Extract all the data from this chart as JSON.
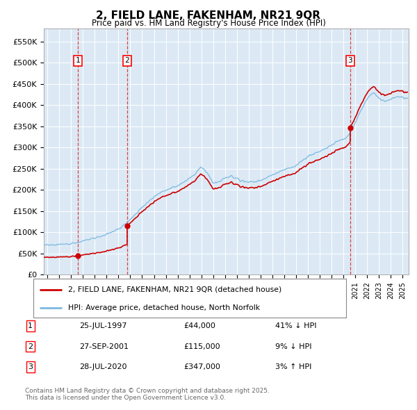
{
  "title": "2, FIELD LANE, FAKENHAM, NR21 9QR",
  "subtitle": "Price paid vs. HM Land Registry's House Price Index (HPI)",
  "plot_bg_color": "#dce9f5",
  "hpi_color": "#7ab8e0",
  "price_color": "#cc0000",
  "ylim": [
    0,
    580000
  ],
  "yticks": [
    0,
    50000,
    100000,
    150000,
    200000,
    250000,
    300000,
    350000,
    400000,
    450000,
    500000,
    550000
  ],
  "ytick_labels": [
    "£0",
    "£50K",
    "£100K",
    "£150K",
    "£200K",
    "£250K",
    "£300K",
    "£350K",
    "£400K",
    "£450K",
    "£500K",
    "£550K"
  ],
  "xlim_start": 1994.7,
  "xlim_end": 2025.5,
  "sales": [
    {
      "year": 1997.56,
      "price": 44000,
      "label": "1"
    },
    {
      "year": 2001.74,
      "price": 115000,
      "label": "2"
    },
    {
      "year": 2020.57,
      "price": 347000,
      "label": "3"
    }
  ],
  "hpi_anchors": [
    [
      1994.7,
      70000
    ],
    [
      1995.0,
      71000
    ],
    [
      1995.5,
      70000
    ],
    [
      1996.0,
      71000
    ],
    [
      1996.5,
      72000
    ],
    [
      1997.0,
      74000
    ],
    [
      1997.5,
      75000
    ],
    [
      1998.0,
      80000
    ],
    [
      1998.5,
      83000
    ],
    [
      1999.0,
      87000
    ],
    [
      1999.5,
      90000
    ],
    [
      2000.0,
      96000
    ],
    [
      2000.5,
      102000
    ],
    [
      2001.0,
      108000
    ],
    [
      2001.5,
      118000
    ],
    [
      2002.0,
      130000
    ],
    [
      2002.5,
      145000
    ],
    [
      2003.0,
      160000
    ],
    [
      2003.5,
      170000
    ],
    [
      2004.0,
      183000
    ],
    [
      2004.5,
      193000
    ],
    [
      2005.0,
      200000
    ],
    [
      2005.5,
      205000
    ],
    [
      2006.0,
      210000
    ],
    [
      2006.5,
      218000
    ],
    [
      2007.0,
      228000
    ],
    [
      2007.5,
      238000
    ],
    [
      2008.0,
      255000
    ],
    [
      2008.5,
      240000
    ],
    [
      2009.0,
      215000
    ],
    [
      2009.5,
      218000
    ],
    [
      2010.0,
      228000
    ],
    [
      2010.5,
      232000
    ],
    [
      2011.0,
      228000
    ],
    [
      2011.5,
      220000
    ],
    [
      2012.0,
      218000
    ],
    [
      2012.5,
      220000
    ],
    [
      2013.0,
      222000
    ],
    [
      2013.5,
      228000
    ],
    [
      2014.0,
      235000
    ],
    [
      2014.5,
      242000
    ],
    [
      2015.0,
      248000
    ],
    [
      2015.5,
      252000
    ],
    [
      2016.0,
      258000
    ],
    [
      2016.5,
      268000
    ],
    [
      2017.0,
      278000
    ],
    [
      2017.5,
      285000
    ],
    [
      2018.0,
      292000
    ],
    [
      2018.5,
      298000
    ],
    [
      2019.0,
      305000
    ],
    [
      2019.5,
      315000
    ],
    [
      2020.0,
      320000
    ],
    [
      2020.5,
      330000
    ],
    [
      2021.0,
      360000
    ],
    [
      2021.5,
      390000
    ],
    [
      2022.0,
      415000
    ],
    [
      2022.3,
      425000
    ],
    [
      2022.6,
      430000
    ],
    [
      2023.0,
      415000
    ],
    [
      2023.5,
      408000
    ],
    [
      2024.0,
      415000
    ],
    [
      2024.5,
      420000
    ],
    [
      2025.0,
      418000
    ],
    [
      2025.4,
      415000
    ]
  ],
  "legend_line1": "2, FIELD LANE, FAKENHAM, NR21 9QR (detached house)",
  "legend_line2": "HPI: Average price, detached house, North Norfolk",
  "table": [
    {
      "num": "1",
      "date": "25-JUL-1997",
      "price": "£44,000",
      "hpi": "41% ↓ HPI"
    },
    {
      "num": "2",
      "date": "27-SEP-2001",
      "price": "£115,000",
      "hpi": "9% ↓ HPI"
    },
    {
      "num": "3",
      "date": "28-JUL-2020",
      "price": "£347,000",
      "hpi": "3% ↑ HPI"
    }
  ],
  "footer": "Contains HM Land Registry data © Crown copyright and database right 2025.\nThis data is licensed under the Open Government Licence v3.0."
}
